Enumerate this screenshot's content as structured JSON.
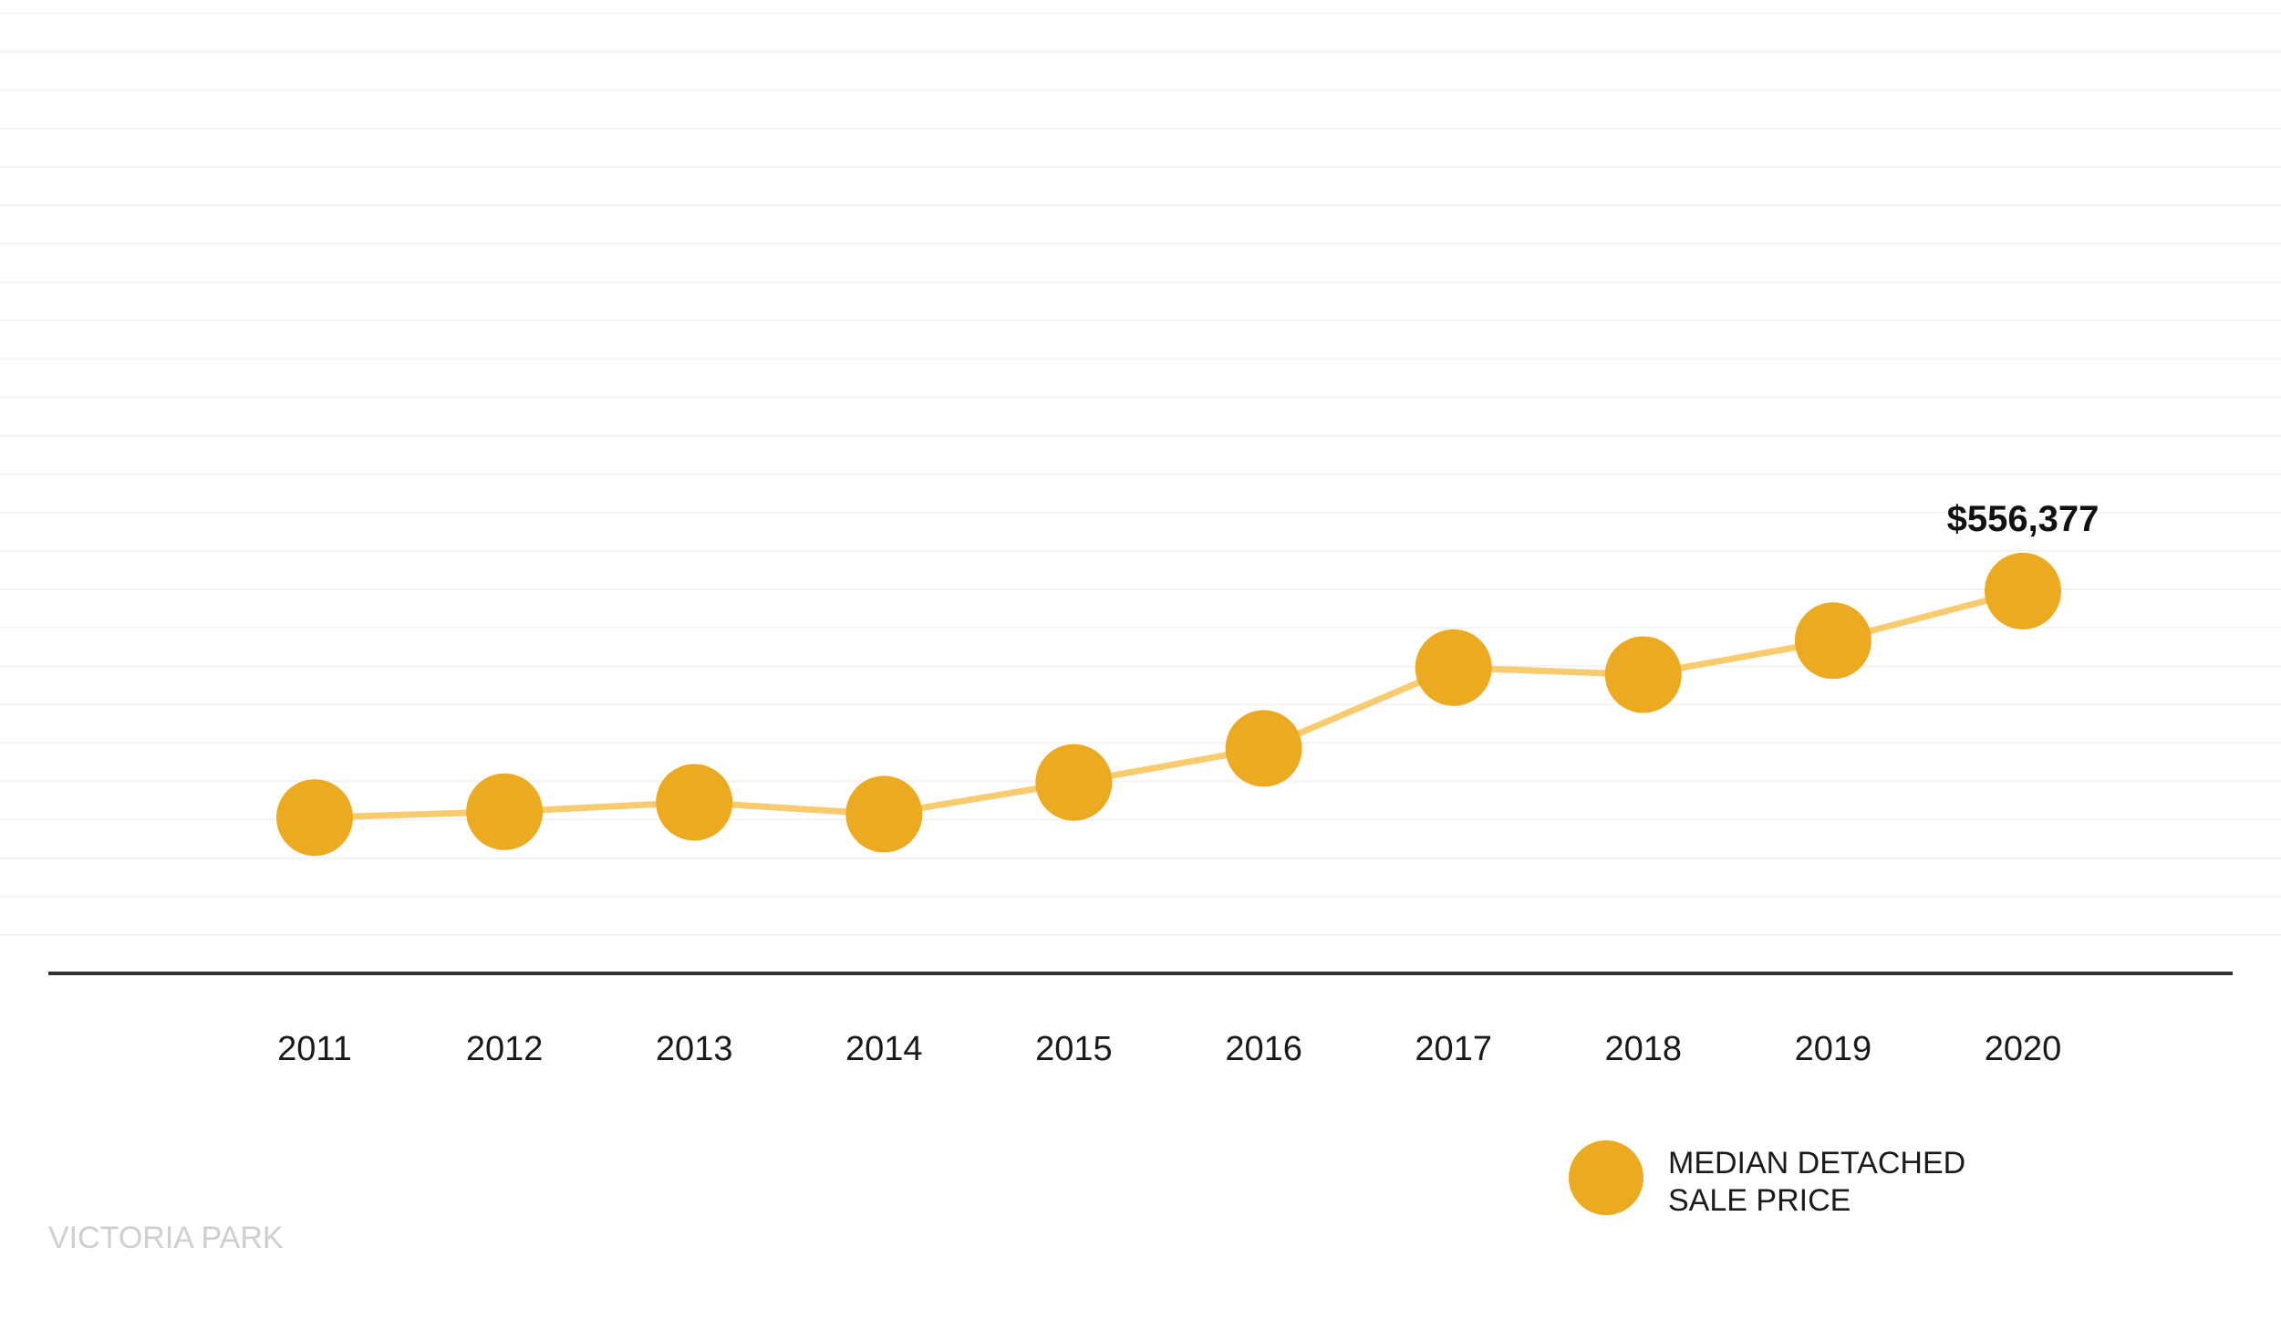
{
  "chart_data": {
    "type": "line",
    "categories": [
      "2011",
      "2012",
      "2013",
      "2014",
      "2015",
      "2016",
      "2017",
      "2018",
      "2019",
      "2020"
    ],
    "series": [
      {
        "name": "MEDIAN DETACHED SALE PRICE",
        "values": [
          363000,
          368000,
          376000,
          366000,
          393000,
          422000,
          491000,
          485000,
          514000,
          556377
        ]
      }
    ],
    "annotations": [
      {
        "category": "2020",
        "text": "$556,377"
      }
    ],
    "legend": {
      "placement": "bottom-right",
      "lines": [
        "MEDIAN DETACHED",
        "SALE PRICE"
      ]
    },
    "ylim": [
      230000,
      1050000
    ],
    "grid": true,
    "title": "",
    "xlabel": "",
    "ylabel": ""
  },
  "footer": {
    "location_label": "VICTORIA PARK"
  },
  "colors": {
    "marker": "#EBAA1F",
    "line": "#F8CB6E",
    "grid": "#F3F3F3",
    "axis": "#333333",
    "watermark": "#CFCFCF"
  }
}
